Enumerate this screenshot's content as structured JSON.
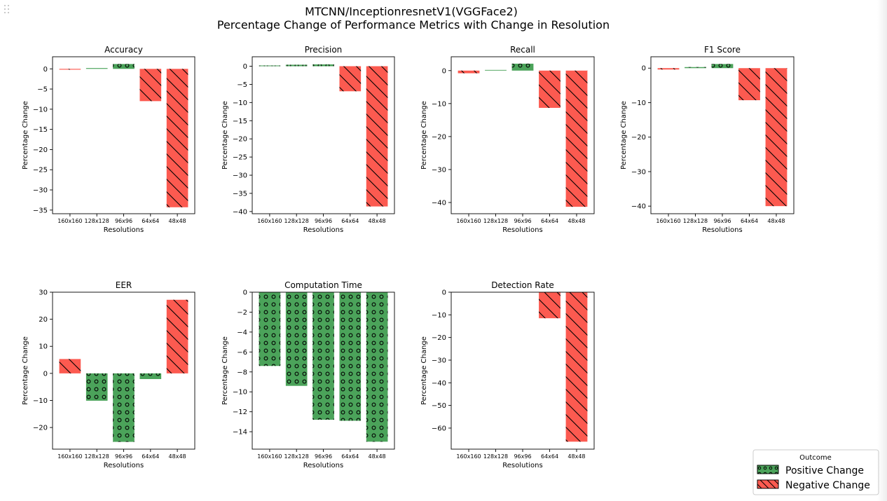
{
  "figure": {
    "title_line1": "MTCNN/InceptionresnetV1(VGGFace2)",
    "title_line2": "Percentage Change of Performance Metrics with Change in Resolution"
  },
  "colors": {
    "positive": "#4ba35a",
    "negative": "#fc5a50",
    "axis": "#000000"
  },
  "legend": {
    "title": "Outcome",
    "placement": "bottom-right",
    "items": [
      {
        "label": "Positive Change",
        "kind": "positive",
        "pattern": "circles"
      },
      {
        "label": "Negative Change",
        "kind": "negative",
        "pattern": "diagonal"
      }
    ]
  },
  "chart_data": [
    {
      "type": "bar",
      "title": "Accuracy",
      "xlabel": "Resolutions",
      "ylabel": "Percentage Change",
      "categories": [
        "160x160",
        "128x128",
        "96x96",
        "64x64",
        "48x48"
      ],
      "values": [
        -0.2,
        0.2,
        1.2,
        -8.0,
        -34.3
      ],
      "ylim": [
        -35.9,
        3.0
      ],
      "yticks": [
        0,
        -5,
        -10,
        -15,
        -20,
        -25,
        -30,
        -35
      ]
    },
    {
      "type": "bar",
      "title": "Precision",
      "xlabel": "Resolutions",
      "ylabel": "Percentage Change",
      "categories": [
        "160x160",
        "128x128",
        "96x96",
        "64x64",
        "48x48"
      ],
      "values": [
        0.2,
        0.4,
        0.5,
        -6.9,
        -38.6
      ],
      "ylim": [
        -40.6,
        2.6
      ],
      "yticks": [
        0,
        -5,
        -10,
        -15,
        -20,
        -25,
        -30,
        -35,
        -40
      ]
    },
    {
      "type": "bar",
      "title": "Recall",
      "xlabel": "Resolutions",
      "ylabel": "Percentage Change",
      "categories": [
        "160x160",
        "128x128",
        "96x96",
        "64x64",
        "48x48"
      ],
      "values": [
        -0.8,
        0.2,
        2.1,
        -11.3,
        -41.3
      ],
      "ylim": [
        -43.4,
        4.2
      ],
      "yticks": [
        0,
        -10,
        -20,
        -30,
        -40
      ]
    },
    {
      "type": "bar",
      "title": "F1 Score",
      "xlabel": "Resolutions",
      "ylabel": "Percentage Change",
      "categories": [
        "160x160",
        "128x128",
        "96x96",
        "64x64",
        "48x48"
      ],
      "values": [
        -0.4,
        0.3,
        1.2,
        -9.3,
        -40.0
      ],
      "ylim": [
        -42.2,
        3.3
      ],
      "yticks": [
        0,
        -10,
        -20,
        -30,
        -40
      ]
    },
    {
      "type": "bar",
      "title": "EER",
      "xlabel": "Resolutions",
      "ylabel": "Percentage Change",
      "categories": [
        "160x160",
        "128x128",
        "96x96",
        "64x64",
        "48x48"
      ],
      "values": [
        5.3,
        -10.1,
        -25.3,
        -2.1,
        27.2
      ],
      "ylim": [
        -28.0,
        30.0
      ],
      "yticks": [
        30,
        20,
        10,
        0,
        -10,
        -20
      ]
    },
    {
      "type": "bar",
      "title": "Computation Time",
      "xlabel": "Resolutions",
      "ylabel": "Percentage Change",
      "categories": [
        "160x160",
        "128x128",
        "96x96",
        "64x64",
        "48x48"
      ],
      "values": [
        -7.4,
        -9.4,
        -12.8,
        -12.9,
        -15.0
      ],
      "ylim": [
        -15.75,
        0.0
      ],
      "yticks": [
        0,
        -2,
        -4,
        -6,
        -8,
        -10,
        -12,
        -14
      ]
    },
    {
      "type": "bar",
      "title": "Detection Rate",
      "xlabel": "Resolutions",
      "ylabel": "Percentage Change",
      "categories": [
        "160x160",
        "128x128",
        "96x96",
        "64x64",
        "48x48"
      ],
      "values": [
        0,
        0,
        0,
        -11.5,
        -66.0
      ],
      "ylim": [
        -69.3,
        0.0
      ],
      "yticks": [
        0,
        -10,
        -20,
        -30,
        -40,
        -50,
        -60
      ]
    }
  ]
}
